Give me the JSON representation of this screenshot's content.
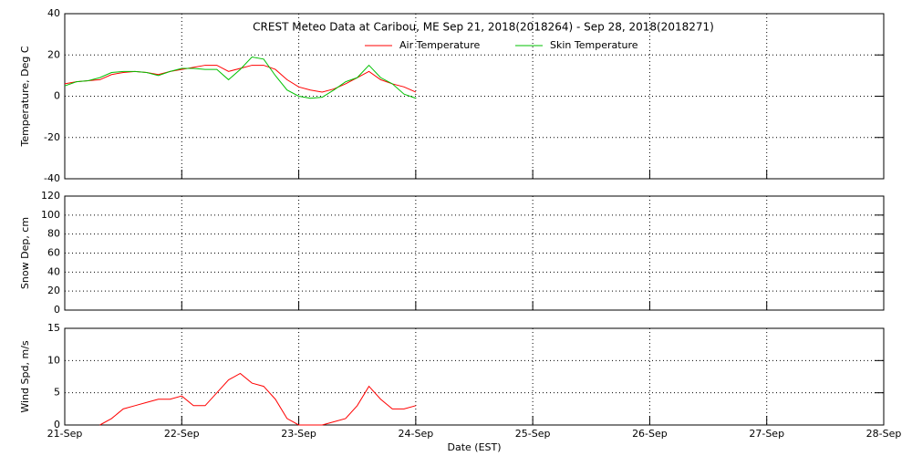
{
  "chart_data": [
    {
      "type": "line",
      "title": "CREST Meteo Data at Caribou, ME   Sep 21, 2018(2018264) - Sep 28, 2018(2018271)",
      "ylabel": "Temperature, Deg C",
      "xlim": [
        21,
        28
      ],
      "ylim": [
        -40,
        40
      ],
      "yticks": [
        -40,
        -20,
        0,
        20,
        40
      ],
      "grid": true,
      "x": [
        21.0,
        21.1,
        21.2,
        21.3,
        21.4,
        21.5,
        21.6,
        21.7,
        21.8,
        21.9,
        22.0,
        22.1,
        22.2,
        22.3,
        22.4,
        22.5,
        22.6,
        22.7,
        22.8,
        22.9,
        23.0,
        23.1,
        23.2,
        23.3,
        23.4,
        23.5,
        23.6,
        23.7,
        23.8,
        23.9,
        24.0
      ],
      "series": [
        {
          "name": "Air Temperature",
          "color": "#ff0000",
          "values": [
            6,
            7,
            7.5,
            8,
            10.5,
            11.5,
            12,
            11.5,
            10.5,
            12,
            13,
            14,
            15,
            15,
            12,
            13.5,
            15,
            15,
            13,
            8,
            4.5,
            3,
            2,
            3.5,
            6,
            9,
            12,
            8,
            6,
            4.5,
            2
          ]
        },
        {
          "name": "Skin Temperature",
          "color": "#00c000",
          "values": [
            5,
            7,
            7.5,
            9,
            11.5,
            12,
            12,
            11.5,
            10,
            12,
            13.5,
            13.5,
            13,
            13,
            8,
            13,
            19,
            18,
            10,
            3,
            0,
            -1,
            -0.5,
            3,
            7,
            9,
            15,
            9,
            6,
            1,
            -1
          ]
        }
      ]
    },
    {
      "type": "line",
      "ylabel": "Snow Dep, cm",
      "xlim": [
        21,
        28
      ],
      "ylim": [
        0,
        120
      ],
      "yticks": [
        0,
        20,
        40,
        60,
        80,
        100,
        120
      ],
      "grid": true
    },
    {
      "type": "line",
      "ylabel": "Wind Spd, m/s",
      "xlabel": "Date (EST)",
      "xlim": [
        21,
        28
      ],
      "ylim": [
        0,
        15
      ],
      "yticks": [
        0,
        5,
        10,
        15
      ],
      "grid": true,
      "xticks": [
        {
          "value": 21,
          "label": "21-Sep"
        },
        {
          "value": 22,
          "label": "22-Sep"
        },
        {
          "value": 23,
          "label": "23-Sep"
        },
        {
          "value": 24,
          "label": "24-Sep"
        },
        {
          "value": 25,
          "label": "25-Sep"
        },
        {
          "value": 26,
          "label": "26-Sep"
        },
        {
          "value": 27,
          "label": "27-Sep"
        },
        {
          "value": 28,
          "label": "28-Sep"
        }
      ],
      "x": [
        21.3,
        21.4,
        21.5,
        21.6,
        21.7,
        21.8,
        21.9,
        22.0,
        22.1,
        22.2,
        22.3,
        22.4,
        22.5,
        22.6,
        22.7,
        22.8,
        22.9,
        23.0,
        23.1,
        23.2,
        23.3,
        23.4,
        23.5,
        23.6,
        23.7,
        23.8,
        23.9,
        24.0
      ],
      "series": [
        {
          "name": "Wind Speed",
          "color": "#ff0000",
          "values": [
            0,
            1,
            2.5,
            3,
            3.5,
            4,
            4,
            4.5,
            3,
            3,
            5,
            7,
            8,
            6.5,
            6,
            4,
            1,
            0,
            0,
            0,
            0.5,
            1,
            3,
            6,
            4,
            2.5,
            2.5,
            3
          ]
        }
      ]
    }
  ]
}
